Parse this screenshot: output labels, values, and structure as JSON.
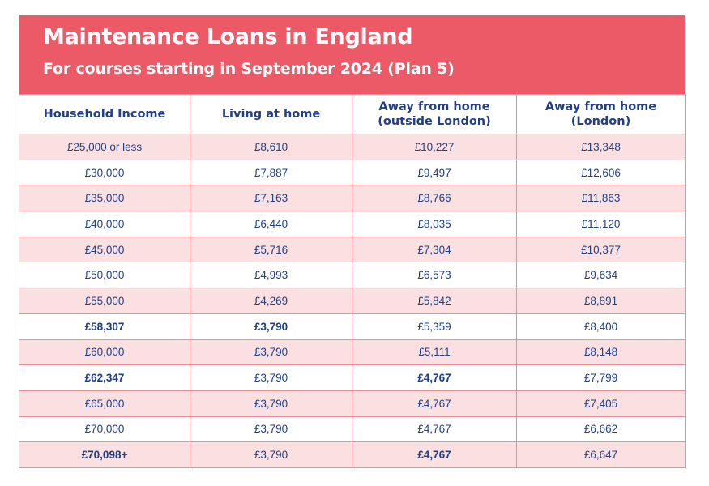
{
  "header": {
    "title": "Maintenance Loans in England",
    "subtitle": "For courses starting in September 2024 (Plan 5)"
  },
  "table": {
    "columns": [
      "Household Income",
      "Living at home",
      "Away from home\n(outside London)",
      "Away from home\n(London)"
    ],
    "rows": [
      [
        "£25,000 or less",
        "£8,610",
        "£10,227",
        "£13,348"
      ],
      [
        "£30,000",
        "£7,887",
        "£9,497",
        "£12,606"
      ],
      [
        "£35,000",
        "£7,163",
        "£8,766",
        "£11,863"
      ],
      [
        "£40,000",
        "£6,440",
        "£8,035",
        "£11,120"
      ],
      [
        "£45,000",
        "£5,716",
        "£7,304",
        "£10,377"
      ],
      [
        "£50,000",
        "£4,993",
        "£6,573",
        "£9,634"
      ],
      [
        "£55,000",
        "£4,269",
        "£5,842",
        "£8,891"
      ],
      [
        "£58,307",
        "£3,790",
        "£5,359",
        "£8,400"
      ],
      [
        "£60,000",
        "£3,790",
        "£5,111",
        "£8,148"
      ],
      [
        "£62,347",
        "£3,790",
        "£4,767",
        "£7,799"
      ],
      [
        "£65,000",
        "£3,790",
        "£4,767",
        "£7,405"
      ],
      [
        "£70,000",
        "£3,790",
        "£4,767",
        "£6,662"
      ],
      [
        "£70,098+",
        "£3,790",
        "£4,767",
        "£6,647"
      ]
    ],
    "bold_cells": [
      [
        7,
        0
      ],
      [
        7,
        1
      ],
      [
        9,
        0
      ],
      [
        9,
        2
      ],
      [
        12,
        0
      ],
      [
        12,
        2
      ]
    ]
  },
  "colors": {
    "header_bg": "#ec5a68",
    "header_text": "#ffffff",
    "table_text": "#1f3f88",
    "stripe": "#fbe0e2",
    "border": "#ec8c93"
  }
}
